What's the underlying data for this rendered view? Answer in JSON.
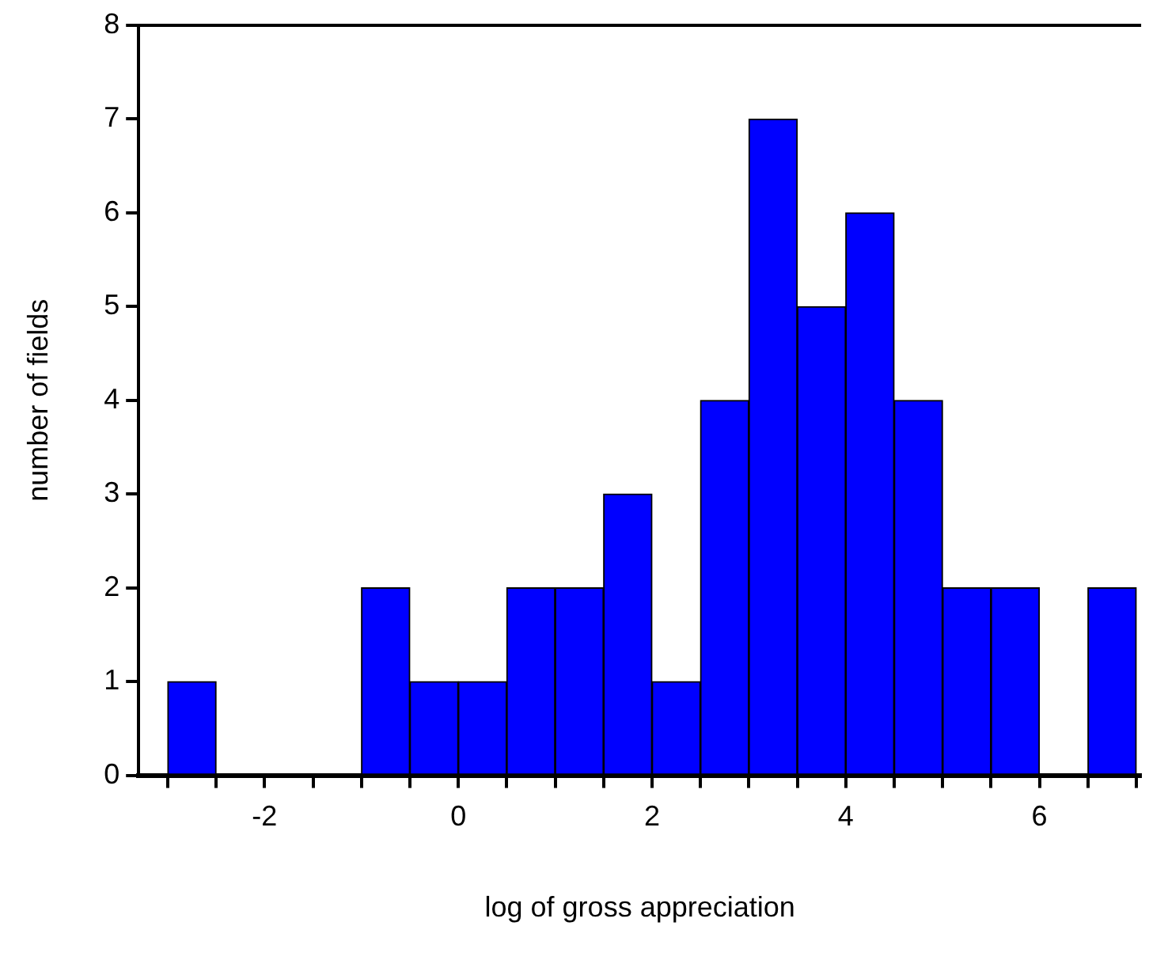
{
  "chart_data": {
    "type": "histogram",
    "xlabel": "log of gross appreciation",
    "ylabel": "number of fields",
    "bins": [
      -3,
      -2.5,
      -2,
      -1.5,
      -1,
      -0.5,
      0,
      0.5,
      1,
      1.5,
      2,
      2.5,
      3,
      3.5,
      4,
      4.5,
      5,
      5.5,
      6,
      6.5,
      7
    ],
    "values": [
      1,
      0,
      0,
      0,
      2,
      1,
      1,
      2,
      2,
      3,
      1,
      4,
      7,
      5,
      6,
      4,
      2,
      2,
      0,
      2
    ],
    "color": "#0000ff",
    "xlim": [
      -3.3,
      7.05
    ],
    "xticks": [
      {
        "value": -3,
        "label": null
      },
      {
        "value": -2.5,
        "label": null
      },
      -2,
      {
        "value": -1.5,
        "label": null
      },
      {
        "value": -1,
        "label": null
      },
      {
        "value": -0.5,
        "label": null
      },
      0,
      {
        "value": 0.5,
        "label": null
      },
      {
        "value": 1,
        "label": null
      },
      {
        "value": 1.5,
        "label": null
      },
      2,
      {
        "value": 2.5,
        "label": null
      },
      {
        "value": 3,
        "label": null
      },
      {
        "value": 3.5,
        "label": null
      },
      4,
      {
        "value": 4.5,
        "label": null
      },
      {
        "value": 5,
        "label": null
      },
      {
        "value": 5.5,
        "label": null
      },
      6,
      {
        "value": 6.5,
        "label": null
      },
      {
        "value": 7,
        "label": null
      }
    ],
    "ylim": [
      0,
      8
    ],
    "yticks": [
      0,
      1,
      2,
      3,
      4,
      5,
      6,
      7,
      8
    ]
  }
}
